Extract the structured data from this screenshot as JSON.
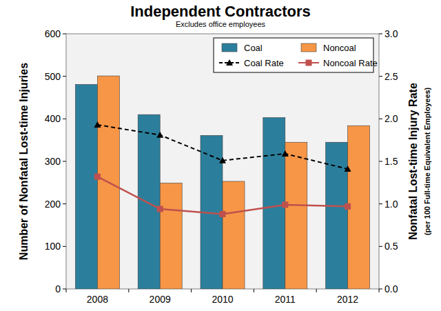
{
  "chart_data": {
    "type": "bar",
    "title": "Independent Contractors",
    "subtitle": "Excludes office employees",
    "y_label": "Number of Nonfatal Lost-time Injuries",
    "y2_label": "Nonfatal Lost-time Injury Rate",
    "y2_label_note": "(per 100 Full-time Equivalent Employees)",
    "categories": [
      "2008",
      "2009",
      "2010",
      "2011",
      "2012"
    ],
    "series": [
      {
        "name": "Coal",
        "type": "bar",
        "color": "#2b7f9c",
        "values": [
          481,
          410,
          361,
          403,
          345
        ]
      },
      {
        "name": "Noncoal",
        "type": "bar",
        "color": "#f79646",
        "values": [
          501,
          249,
          253,
          345,
          384
        ]
      },
      {
        "name": "Coal Rate",
        "type": "line",
        "axis": "y2",
        "color": "#000000",
        "marker": "triangle",
        "line_style": "dashed",
        "values": [
          1.93,
          1.81,
          1.51,
          1.59,
          1.41
        ]
      },
      {
        "name": "Noncoal Rate",
        "type": "line",
        "axis": "y2",
        "color": "#c0504d",
        "marker": "square",
        "line_style": "solid",
        "values": [
          1.32,
          0.94,
          0.88,
          0.99,
          0.97
        ]
      }
    ],
    "ylim": [
      0,
      600
    ],
    "yticks": [
      0,
      100,
      200,
      300,
      400,
      500,
      600
    ],
    "y2lim": [
      0,
      3
    ],
    "y2ticks": [
      {
        "value": 0,
        "label": "0.0"
      },
      0.5,
      {
        "value": 1,
        "label": "1.0"
      },
      1.5,
      {
        "value": 2,
        "label": "2.0"
      },
      2.5,
      {
        "value": 3,
        "label": "3.0"
      }
    ],
    "grid": false,
    "legend": "top-right"
  }
}
